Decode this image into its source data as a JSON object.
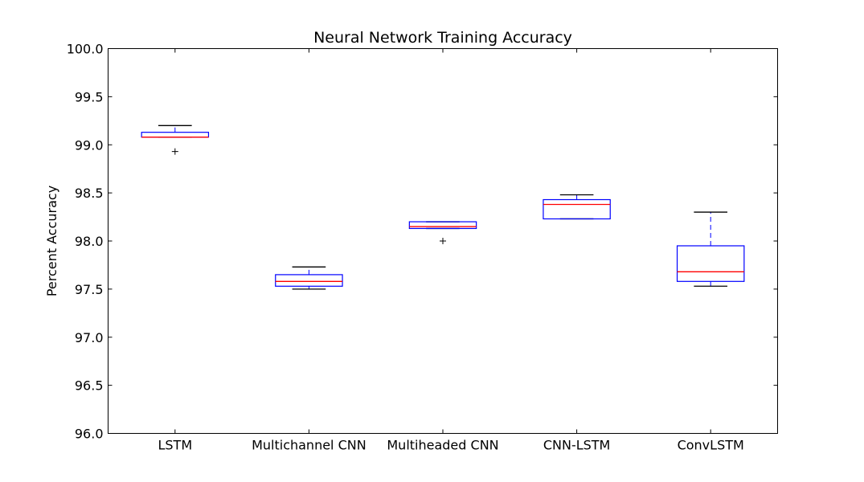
{
  "chart_data": {
    "type": "boxplot",
    "title": "Neural Network Training Accuracy",
    "xlabel": "",
    "ylabel": "Percent Accuracy",
    "ylim": [
      96.0,
      100.0
    ],
    "yticks": [
      "96.0",
      "96.5",
      "97.0",
      "97.5",
      "98.0",
      "98.5",
      "99.0",
      "99.5",
      "100.0"
    ],
    "grid": false,
    "categories": [
      "LSTM",
      "Multichannel CNN",
      "Multiheaded CNN",
      "CNN-LSTM",
      "ConvLSTM"
    ],
    "boxes": [
      {
        "whisker_low": 99.08,
        "q1": 99.08,
        "median": 99.08,
        "q3": 99.13,
        "whisker_high": 99.2,
        "outliers": [
          98.93
        ]
      },
      {
        "whisker_low": 97.5,
        "q1": 97.53,
        "median": 97.58,
        "q3": 97.65,
        "whisker_high": 97.73,
        "outliers": []
      },
      {
        "whisker_low": 98.13,
        "q1": 98.13,
        "median": 98.15,
        "q3": 98.2,
        "whisker_high": 98.2,
        "outliers": [
          98.0
        ]
      },
      {
        "whisker_low": 98.23,
        "q1": 98.23,
        "median": 98.38,
        "q3": 98.43,
        "whisker_high": 98.48,
        "outliers": []
      },
      {
        "whisker_low": 97.53,
        "q1": 97.58,
        "median": 97.68,
        "q3": 97.95,
        "whisker_high": 98.3,
        "outliers": []
      }
    ],
    "colors": {
      "box": "#0000ff",
      "median": "#ff0000",
      "whisker_cap": "#000000",
      "outlier": "#000000"
    }
  }
}
